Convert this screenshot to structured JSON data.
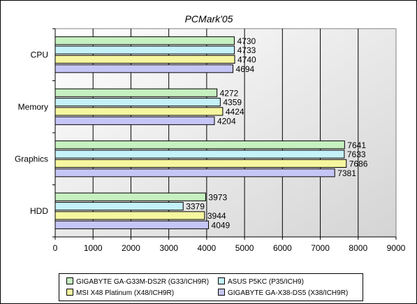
{
  "chart_data": {
    "type": "bar",
    "orientation": "horizontal",
    "title": "PCMark'05",
    "categories": [
      "CPU",
      "Memory",
      "Graphics",
      "HDD"
    ],
    "xlim": [
      0,
      9000
    ],
    "xticks": [
      "0",
      "1000",
      "2000",
      "3000",
      "4000",
      "5000",
      "6000",
      "7000",
      "8000",
      "9000"
    ],
    "grid": true,
    "legend_position": "bottom",
    "series": [
      {
        "name": "GIGABYTE GA-G33M-DS2R (G33/ICH9R)",
        "color": "#c6f0c0",
        "values": [
          4730,
          4272,
          7641,
          3973
        ]
      },
      {
        "name": "ASUS P5KC (P35/ICH9)",
        "color": "#c4f2f8",
        "values": [
          4733,
          4359,
          7633,
          3379
        ]
      },
      {
        "name": "MSI X48 Platinum (X48/ICH9R)",
        "color": "#f6f6a0",
        "values": [
          4740,
          4424,
          7686,
          3944
        ]
      },
      {
        "name": "GIGABYTE GA-X38-DS5 (X38/ICH9R)",
        "color": "#c6c6f6",
        "values": [
          4694,
          4204,
          7381,
          4049
        ]
      }
    ]
  }
}
